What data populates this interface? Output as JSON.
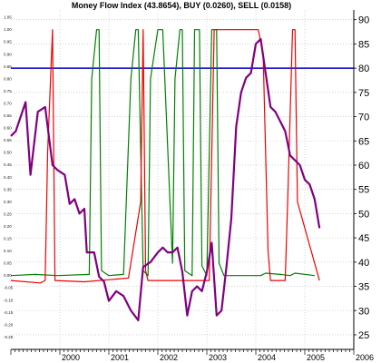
{
  "chart_data": {
    "type": "line",
    "title": "Money Flow Index (43.8654), BUY (0.0260), SELL (0.0158)",
    "xlabel": "",
    "ylabel": "",
    "grid": true,
    "x_tick_labels": [
      "2000",
      "2001",
      "2002",
      "2003",
      "2004",
      "2005",
      "2006"
    ],
    "x_range": [
      1999.0,
      2006.0
    ],
    "right_axis": {
      "ylim": [
        22,
        92
      ],
      "ticks": [
        25,
        30,
        35,
        40,
        45,
        50,
        55,
        60,
        65,
        70,
        75,
        80,
        85,
        90
      ],
      "reference_line": 80,
      "reference_color": "#0000cc"
    },
    "left_axis": {
      "ylim": [
        -0.3,
        1.08
      ],
      "tick_labels": [
        "-0.25",
        "-0.20",
        "-0.15",
        "-0.10",
        "-0.05",
        "0.00",
        "0.05",
        "0.10",
        "0.15",
        "0.20",
        "0.25",
        "0.30",
        "0.35",
        "0.40",
        "0.45",
        "0.50",
        "0.55",
        "0.60",
        "0.65",
        "0.70",
        "0.75",
        "0.80",
        "0.85",
        "0.90",
        "0.95",
        "1.00",
        "1.05"
      ]
    },
    "series": [
      {
        "color": "#800080",
        "axis": "right",
        "x": [
          1999.0,
          1999.1,
          1999.3,
          1999.4,
          1999.55,
          1999.7,
          1999.85,
          1999.95,
          2000.1,
          2000.2,
          2000.3,
          2000.4,
          2000.5,
          2000.55,
          2000.7,
          2000.8,
          2000.9,
          2001.0,
          2001.15,
          2001.3,
          2001.45,
          2001.6,
          2001.7,
          2001.85,
          2002.0,
          2002.1,
          2002.2,
          2002.3,
          2002.4,
          2002.5,
          2002.6,
          2002.7,
          2002.8,
          2002.9,
          2003.0,
          2003.1,
          2003.2,
          2003.3,
          2003.4,
          2003.5,
          2003.6,
          2003.7,
          2003.8,
          2003.9,
          2004.0,
          2004.1,
          2004.2,
          2004.3,
          2004.4,
          2004.5,
          2004.6,
          2004.7,
          2004.8,
          2004.9,
          2005.0,
          2005.1,
          2005.2,
          2005.3
        ],
        "values": [
          66,
          67,
          73,
          58,
          71,
          72,
          60,
          59,
          58,
          52,
          53,
          50,
          51,
          42,
          42,
          37,
          36,
          32,
          34,
          33,
          30,
          28,
          39,
          40,
          42,
          43,
          42,
          42,
          43,
          38,
          29,
          34,
          35,
          34,
          38,
          44,
          29,
          30,
          39,
          49,
          68,
          75,
          78,
          79,
          85,
          86,
          79,
          72,
          71,
          69,
          67,
          62,
          61,
          60,
          57,
          56,
          53,
          47
        ]
      },
      {
        "color": "#008000",
        "axis": "left",
        "x": [
          1999.0,
          1999.5,
          1999.95,
          2000.6,
          2000.65,
          2000.75,
          2000.8,
          2000.85,
          2001.0,
          2001.3,
          2001.45,
          2001.55,
          2001.6,
          2001.7,
          2001.8,
          2001.85,
          2002.0,
          2002.1,
          2002.3,
          2002.35,
          2002.45,
          2002.5,
          2002.55,
          2002.7,
          2002.75,
          2002.85,
          2002.9,
          2003.0,
          2003.1,
          2003.2,
          2003.25,
          2003.35,
          2003.5,
          2003.8,
          2004.1,
          2004.2,
          2004.5,
          2004.7,
          2004.8,
          2005.2
        ],
        "values": [
          0.0,
          0.005,
          0.0,
          0.005,
          0.8,
          1.0,
          1.0,
          0.02,
          0.0,
          0.005,
          0.8,
          1.0,
          1.0,
          0.02,
          0.0,
          0.8,
          1.0,
          1.0,
          0.05,
          0.8,
          1.0,
          1.0,
          0.02,
          0.0,
          1.0,
          1.0,
          0.04,
          0.0,
          1.0,
          1.0,
          0.05,
          0.0,
          0.0,
          0.0,
          0.0,
          0.01,
          0.005,
          0.0,
          0.01,
          0.0
        ]
      },
      {
        "color": "#ee0000",
        "axis": "left",
        "x": [
          1999.0,
          1999.6,
          1999.7,
          1999.75,
          1999.85,
          1999.9,
          2000.5,
          2001.4,
          2001.65,
          2001.7,
          2001.75,
          2001.8,
          2002.2,
          2003.05,
          2003.15,
          2003.8,
          2004.0,
          2004.05,
          2004.15,
          2004.25,
          2004.3,
          2004.6,
          2004.65,
          2004.75,
          2004.8,
          2004.85,
          2005.3
        ],
        "values": [
          -0.02,
          -0.03,
          -0.02,
          0.5,
          1.0,
          -0.02,
          -0.025,
          -0.01,
          0.3,
          1.0,
          0.02,
          -0.02,
          -0.02,
          -0.02,
          1.0,
          1.0,
          1.0,
          1.0,
          0.9,
          0.1,
          -0.02,
          -0.02,
          0.3,
          1.0,
          1.0,
          0.3,
          -0.02
        ]
      }
    ]
  }
}
